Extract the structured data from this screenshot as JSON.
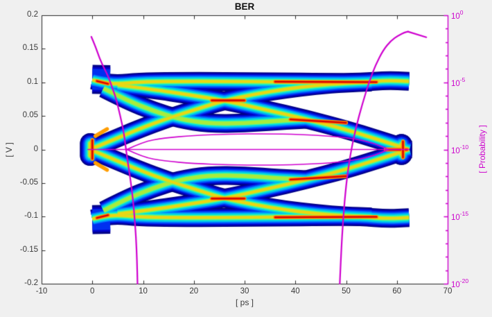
{
  "window": {
    "background": "#f0f0f0",
    "plot_background": "#ffffff"
  },
  "header": {
    "title": "BER"
  },
  "axes": {
    "x": {
      "label": "[ ps ]",
      "range": [
        -10,
        70
      ],
      "tick_values": [
        -10,
        0,
        10,
        20,
        30,
        40,
        50,
        60,
        70
      ],
      "tick_labels": [
        "-10",
        "0",
        "10",
        "20",
        "30",
        "40",
        "50",
        "60",
        "70"
      ]
    },
    "y_left": {
      "label": "[ V ]",
      "range": [
        -0.2,
        0.2
      ],
      "tick_values": [
        0.2,
        0.15,
        0.1,
        0.05,
        0,
        -0.05,
        -0.1,
        -0.15,
        -0.2
      ],
      "tick_labels": [
        "0.2",
        "0.15",
        "0.1",
        "0.05",
        "0",
        "-0.05",
        "-0.1",
        "-0.15",
        "-0.2"
      ]
    },
    "y_right": {
      "label": "[ Probability ]",
      "scale": "log",
      "range_exponents": [
        -20,
        0
      ],
      "major_tick_exponents": [
        0,
        -5,
        -10,
        -15,
        -20
      ],
      "major_tick_labels": [
        "0",
        "-5",
        "-10",
        "-15",
        "-20"
      ],
      "minor_tick_every_decade": true,
      "color": "#cc00cc"
    }
  },
  "chart_data": {
    "type": "heatmap",
    "title": "BER",
    "xlabel": "[ ps ]",
    "ylabel": "[ V ]",
    "y2label": "[ Probability ]",
    "colormap": "jet",
    "description": "Statistical eye diagram (2D trace-density heatmap, jet colormap, volts vs picoseconds) overlaid with magenta BER bathtub curves and eye-opening contour read on the right log-probability axis.",
    "xlim": [
      -10,
      70
    ],
    "ylim_V": [
      -0.2,
      0.2
    ],
    "ylim_probability_exponents": [
      -20,
      0
    ],
    "grid": false,
    "eye": {
      "signal_levels_V": [
        0.1,
        -0.1
      ],
      "zero_crossing_times_ps": [
        0,
        62.4
      ],
      "inner_crossing": {
        "t_ps": 26,
        "v_V": 0.073
      },
      "data_time_span_ps": [
        0,
        62.4
      ],
      "symmetric_mirror": true,
      "bands": [
        {
          "name": "rail-top",
          "core": 9,
          "pts": [
            [
              0,
              0.1035
            ],
            [
              2,
              0.1
            ],
            [
              5,
              0.0975
            ],
            [
              9,
              0.1005
            ],
            [
              16,
              0.1015
            ],
            [
              26,
              0.1015
            ],
            [
              36,
              0.1008
            ],
            [
              46,
              0.1
            ],
            [
              53,
              0.1
            ],
            [
              58,
              0.103
            ],
            [
              62.4,
              0.1015
            ]
          ]
        },
        {
          "name": "fall-main",
          "core": 9,
          "pts": [
            [
              5,
              0.096
            ],
            [
              12,
              0.0895
            ],
            [
              19,
              0.0815
            ],
            [
              26,
              0.073
            ],
            [
              34,
              0.0595
            ],
            [
              42,
              0.0455
            ],
            [
              50,
              0.0295
            ],
            [
              56,
              0.0155
            ],
            [
              60,
              0.006
            ],
            [
              62.4,
              -0.0005
            ]
          ]
        },
        {
          "name": "rise-main",
          "core": 9,
          "pts": [
            [
              -0.3,
              0.0005
            ],
            [
              4,
              0.014
            ],
            [
              9,
              0.03
            ],
            [
              15,
              0.047
            ],
            [
              21,
              0.061
            ],
            [
              26,
              0.073
            ],
            [
              32,
              0.0825
            ],
            [
              38,
              0.09
            ],
            [
              44,
              0.0955
            ],
            [
              50,
              0.099
            ],
            [
              55,
              0.1005
            ]
          ]
        },
        {
          "name": "steep-fall",
          "core": 8,
          "pts": [
            [
              2.2,
              0.091
            ],
            [
              7,
              0.0725
            ],
            [
              12,
              0.0575
            ],
            [
              17,
              0.0455
            ],
            [
              23,
              0.0385
            ],
            [
              30,
              0.039
            ],
            [
              37,
              0.043
            ],
            [
              42,
              0.045
            ]
          ]
        },
        {
          "name": "left-crossing-blob",
          "core": 9,
          "wx": 1.1,
          "cap": "round",
          "pts": [
            [
              -0.4,
              -0.009
            ],
            [
              -0.4,
              0.009
            ]
          ]
        },
        {
          "name": "right-crossing-blob",
          "core": 9,
          "wx": 1.15,
          "cap": "round",
          "pts": [
            [
              60.9,
              -0.007
            ],
            [
              60.9,
              0.007
            ]
          ]
        },
        {
          "name": "rail-top-left-flare",
          "core": 3,
          "wx": 1.55,
          "pts": [
            [
              0,
              0.1045
            ],
            [
              3.5,
              0.104
            ]
          ]
        }
      ],
      "hotspots": [
        {
          "name": "rail-left-hot",
          "pts": [
            [
              0.9,
              0.102
            ],
            [
              3.1,
              0.0978
            ]
          ]
        },
        {
          "name": "rail-right-hot",
          "pts": [
            [
              36,
              0.101
            ],
            [
              56,
              0.1004
            ]
          ]
        },
        {
          "name": "inner-x-hot",
          "pts": [
            [
              23.5,
              0.0731
            ],
            [
              30,
              0.0731
            ]
          ]
        },
        {
          "name": "merge-streak-hot",
          "pts": [
            [
              39,
              0.0448
            ],
            [
              50,
              0.0398
            ]
          ]
        },
        {
          "name": "left-crossing-hot",
          "pts": [
            [
              0,
              -0.014
            ],
            [
              0,
              0.014
            ]
          ]
        },
        {
          "name": "left-arm-warm",
          "orange_only": true,
          "pts": [
            [
              0.6,
              0.02
            ],
            [
              2.9,
              0.0305
            ]
          ]
        },
        {
          "name": "right-crossing-hot",
          "pts": [
            [
              57.8,
              0.0003
            ],
            [
              62.0,
              0.0003
            ]
          ]
        },
        {
          "name": "right-crossing-hot-v",
          "pts": [
            [
              61.2,
              -0.012
            ],
            [
              61.2,
              0.012
            ]
          ]
        }
      ]
    },
    "overlays": {
      "color": "#cf00cf",
      "zero_line": {
        "v_V": 0,
        "t_ps": [
          -0.9,
          62.4
        ]
      },
      "eye_contour_upper": [
        [
          6.8,
          0.0
        ],
        [
          10,
          0.0115
        ],
        [
          14,
          0.017
        ],
        [
          20,
          0.021
        ],
        [
          27,
          0.023
        ],
        [
          34,
          0.0235
        ],
        [
          41,
          0.0225
        ],
        [
          47,
          0.02
        ],
        [
          52,
          0.0155
        ],
        [
          55.5,
          0.0095
        ],
        [
          58.3,
          0.0
        ]
      ],
      "eye_contour_mirrored": true,
      "bathtub_left_t_log10p": [
        [
          -0.2,
          -1.6
        ],
        [
          0.6,
          -2.3
        ],
        [
          1.4,
          -3.2
        ],
        [
          2.4,
          -4.0
        ],
        [
          3.2,
          -4.6
        ],
        [
          4.0,
          -5.5
        ],
        [
          4.6,
          -6.1
        ],
        [
          5.5,
          -7.5
        ],
        [
          6.2,
          -8.7
        ],
        [
          6.8,
          -10.5
        ],
        [
          7.5,
          -12.2
        ],
        [
          8.0,
          -13.7
        ],
        [
          8.3,
          -15.0
        ],
        [
          8.6,
          -16.5
        ],
        [
          8.8,
          -18.3
        ],
        [
          8.9,
          -20
        ]
      ],
      "bathtub_right_t_log10p": [
        [
          48.75,
          -20
        ],
        [
          49.0,
          -17.8
        ],
        [
          49.4,
          -15.2
        ],
        [
          50.0,
          -12.6
        ],
        [
          50.8,
          -10.4
        ],
        [
          51.9,
          -8.4
        ],
        [
          53.2,
          -6.6
        ],
        [
          54.5,
          -5.0
        ],
        [
          55.8,
          -3.7
        ],
        [
          57.3,
          -2.6
        ],
        [
          58.8,
          -1.9
        ],
        [
          60.3,
          -1.5
        ],
        [
          61.5,
          -1.28
        ],
        [
          62.2,
          -1.22
        ]
      ],
      "bathtub_right_tail": [
        [
          62.2,
          -1.22
        ],
        [
          65.8,
          -1.64
        ]
      ]
    },
    "colors": {
      "magenta_curve": "#cf00cf",
      "right_axis": "#cc00cc",
      "axis_line": "#262626",
      "axis_text": "#3a3a3a",
      "title_text": "#101010",
      "jet_layers": [
        "#000087",
        "#0000c8",
        "#0030f0",
        "#0078ff",
        "#00b8f0",
        "#00e4d8",
        "#46f49e",
        "#a8ec3c",
        "#ecd612"
      ],
      "hot_layers": [
        "#ff9d00",
        "#fc4a00",
        "#d00000"
      ]
    }
  }
}
